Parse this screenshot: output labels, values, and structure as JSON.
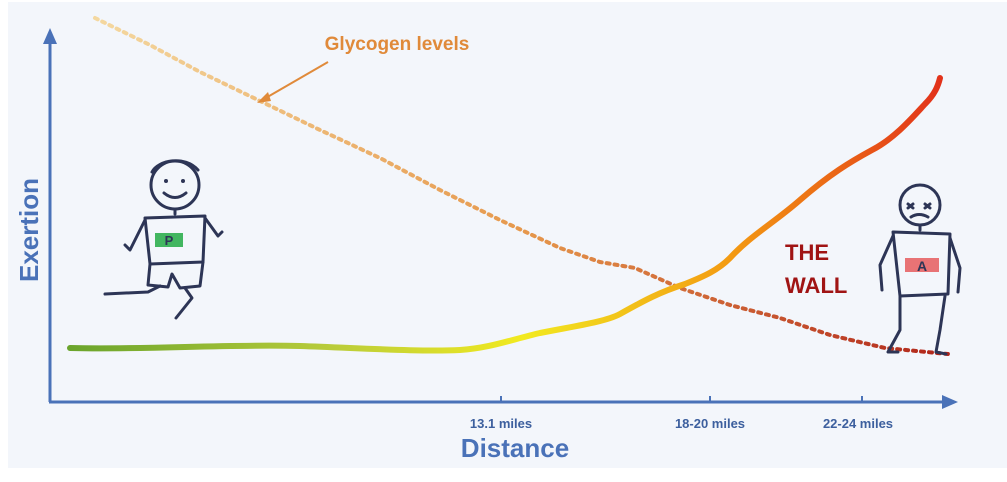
{
  "diagram": {
    "ylabel": "Exertion",
    "xlabel": "Distance",
    "annotation": "Glycogen levels",
    "wall_label_line1": "THE",
    "wall_label_line2": "WALL",
    "ticks": [
      "13.1 miles",
      "18-20 miles",
      "22-24 miles"
    ],
    "runner_left_bib": "P",
    "runner_right_bib": "A"
  },
  "colors": {
    "panel_bg": "#f3f6fb",
    "axis": "#4a72b8",
    "ylabel": "#4a72b8",
    "xlabel": "#4a72b8",
    "tick_text": "#3c5f9e",
    "annotation": "#e08a3a",
    "wall": "#a01414",
    "glycogen_start": "#f4d8a0",
    "glycogen_end": "#b0241a",
    "exertion_green": "#6aa42c",
    "exertion_yellow": "#f2ea20",
    "exertion_orange": "#f39a12",
    "exertion_red": "#e2321a",
    "stick": "#2d3556",
    "bib": "#22aa44"
  }
}
